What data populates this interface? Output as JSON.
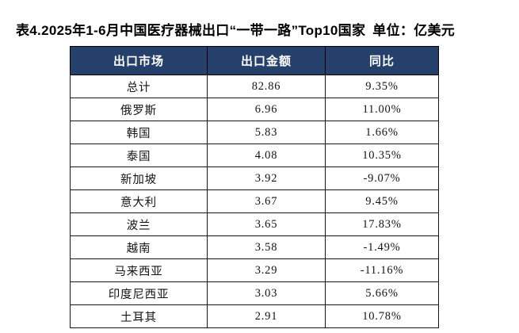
{
  "colors": {
    "header_bg": "#24406B",
    "header_text": "#FFFFFF",
    "border": "#161616",
    "body_text": "#141414",
    "page_bg": "#FFFFFF"
  },
  "header": {
    "title": "表4.2025年1-6月中国医疗器械出口“一带一路”Top10国家",
    "unit_label": "单位：亿美元"
  },
  "chart_data": {
    "type": "table",
    "title": "表4.2025年1-6月中国医疗器械出口“一带一路”Top10国家",
    "unit": "单位：亿美元",
    "columns": [
      "出口市场",
      "出口金额",
      "同比"
    ],
    "rows": [
      [
        "总计",
        "82.86",
        "9.35%"
      ],
      [
        "俄罗斯",
        "6.96",
        "11.00%"
      ],
      [
        "韩国",
        "5.83",
        "1.66%"
      ],
      [
        "泰国",
        "4.08",
        "10.35%"
      ],
      [
        "新加坡",
        "3.92",
        "-9.07%"
      ],
      [
        "意大利",
        "3.67",
        "9.45%"
      ],
      [
        "波兰",
        "3.65",
        "17.83%"
      ],
      [
        "越南",
        "3.58",
        "-1.49%"
      ],
      [
        "马来西亚",
        "3.29",
        "-11.16%"
      ],
      [
        "印度尼西亚",
        "3.03",
        "5.66%"
      ],
      [
        "土耳其",
        "2.91",
        "10.78%"
      ]
    ]
  }
}
